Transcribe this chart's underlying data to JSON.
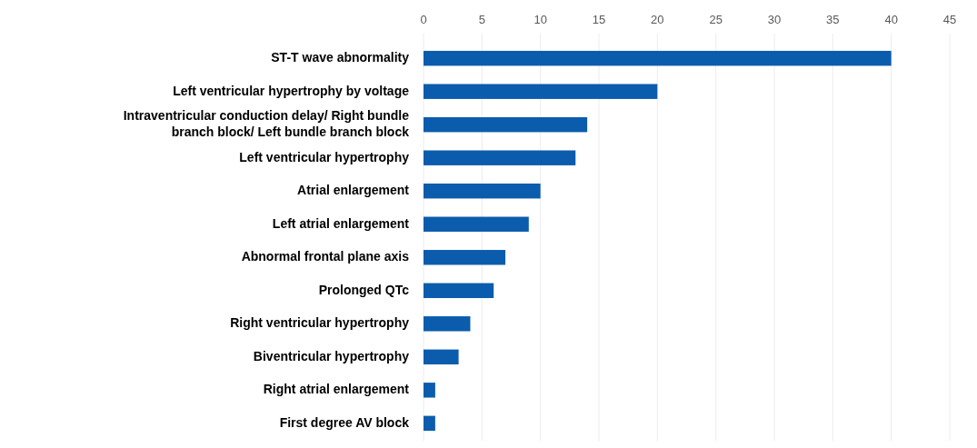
{
  "chart_data": {
    "type": "bar",
    "orientation": "horizontal",
    "categories": [
      "ST-T wave abnormality",
      "Left ventricular hypertrophy by voltage",
      "Intraventricular conduction delay/ Right bundle branch block/ Left bundle branch block",
      "Left ventricular hypertrophy",
      "Atrial enlargement",
      "Left atrial enlargement",
      "Abnormal frontal plane axis",
      "Prolonged QTc",
      "Right ventricular hypertrophy",
      "Biventricular hypertrophy",
      "Right atrial enlargement",
      "First degree AV block"
    ],
    "values": [
      40,
      20,
      14,
      13,
      10,
      9,
      7,
      6,
      4,
      3,
      1,
      1
    ],
    "color": "#0b5cad",
    "xlim": [
      0,
      45
    ],
    "xticks": [
      0,
      5,
      10,
      15,
      20,
      25,
      30,
      35,
      40,
      45
    ],
    "grid": "x"
  }
}
